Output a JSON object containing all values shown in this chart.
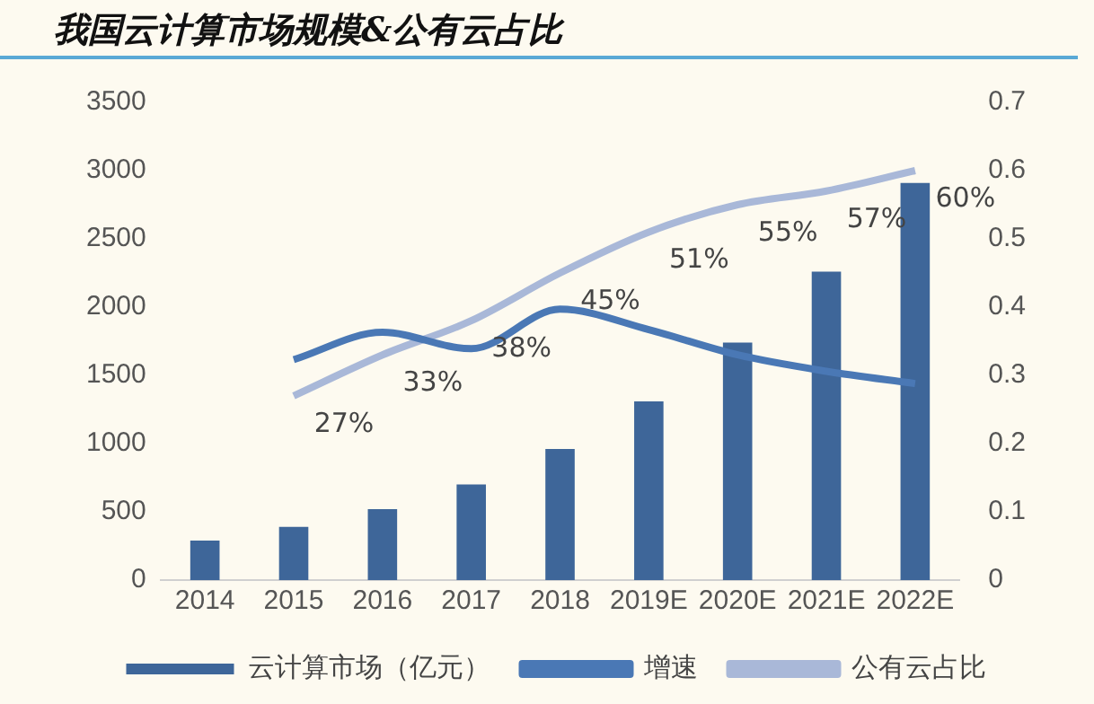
{
  "chart_data": {
    "type": "bar",
    "title": "我国云计算市场规模&公有云占比",
    "categories": [
      "2014",
      "2015",
      "2016",
      "2017",
      "2018",
      "2019E",
      "2020E",
      "2021E",
      "2022E"
    ],
    "series": [
      {
        "name": "云计算市场（亿元）",
        "color": "#3e6699",
        "values": [
          290,
          390,
          520,
          700,
          960,
          1310,
          1740,
          2260,
          2910
        ]
      },
      {
        "name": "增速",
        "type": "line",
        "axis": "y2",
        "color": "#4a78b5",
        "values": [
          null,
          0.323,
          0.363,
          0.339,
          0.397,
          0.367,
          0.33,
          0.306,
          0.288
        ]
      },
      {
        "name": "公有云占比",
        "type": "line",
        "axis": "y2",
        "color": "#a9b8d8",
        "values": [
          null,
          0.27,
          0.33,
          0.38,
          0.45,
          0.51,
          0.55,
          0.57,
          0.6
        ],
        "value_labels": [
          null,
          "27%",
          "33%",
          "38%",
          "45%",
          "51%",
          "55%",
          "57%",
          "60%"
        ]
      }
    ],
    "ylim": [
      0,
      3500
    ],
    "yticks": [
      0,
      500,
      1000,
      1500,
      2000,
      2500,
      3000,
      3500
    ],
    "y2lim": [
      0,
      0.7
    ],
    "y2ticks": [
      0,
      0.1,
      0.2,
      0.3,
      0.4,
      0.5,
      0.6,
      0.7
    ],
    "grid": false,
    "legend": "bottom",
    "marker": "none"
  }
}
